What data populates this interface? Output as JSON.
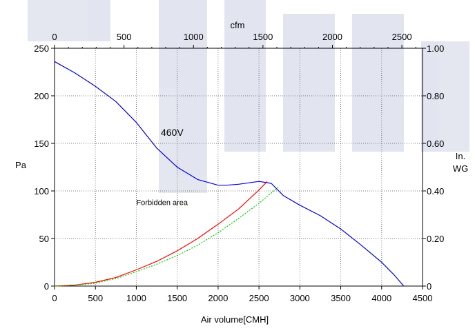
{
  "chart_data": {
    "type": "line",
    "x_axis": {
      "label": "Air volume[CMH]",
      "range": [
        0,
        4500
      ],
      "ticks": [
        0,
        500,
        1000,
        1500,
        2000,
        2500,
        3000,
        3500,
        4000,
        4500
      ]
    },
    "x2_axis": {
      "label": "cfm",
      "range": [
        0,
        2648.6
      ],
      "ticks": [
        0,
        500,
        1000,
        1500,
        2000,
        2500
      ]
    },
    "y_axis": {
      "label": "Pa",
      "range": [
        0,
        250
      ],
      "ticks": [
        0,
        50,
        100,
        150,
        200,
        250
      ]
    },
    "y2_axis": {
      "label_lines": [
        "In.",
        "WG"
      ],
      "range": [
        0,
        1.0
      ],
      "ticks": [
        "0",
        "0.20",
        "0.40",
        "0.60",
        "0.80",
        "1.00"
      ]
    },
    "grid": true,
    "series": [
      {
        "name": "460V",
        "color": "#0000dd",
        "style": "solid",
        "x": [
          0,
          250,
          500,
          750,
          1000,
          1250,
          1500,
          1750,
          2000,
          2100,
          2250,
          2500,
          2650,
          2800,
          3000,
          3250,
          3500,
          3750,
          4000,
          4150,
          4270
        ],
        "y": [
          236,
          224,
          210,
          194,
          172,
          145,
          125,
          112,
          106,
          106,
          107,
          110,
          108,
          95,
          85,
          74,
          60,
          43,
          25,
          12,
          0
        ]
      },
      {
        "name": "",
        "color": "#ff0000",
        "style": "solid",
        "x": [
          0,
          250,
          500,
          750,
          1000,
          1250,
          1500,
          1750,
          2000,
          2250,
          2500,
          2600
        ],
        "y": [
          0,
          1,
          4,
          9,
          17,
          26,
          37,
          50,
          65,
          81,
          101,
          110
        ]
      },
      {
        "name": "",
        "color": "#00cc00",
        "style": "dotted",
        "x": [
          0,
          250,
          500,
          750,
          1000,
          1250,
          1500,
          1750,
          2000,
          2250,
          2500,
          2750
        ],
        "y": [
          0,
          1,
          3,
          8,
          15,
          23,
          32,
          43,
          56,
          71,
          87,
          105
        ]
      }
    ],
    "annotations": [
      {
        "text": "460V",
        "x": 1300,
        "y": 158,
        "size": 14
      },
      {
        "text": "Forbidden area",
        "x": 1000,
        "y": 85,
        "size": 11
      }
    ]
  }
}
